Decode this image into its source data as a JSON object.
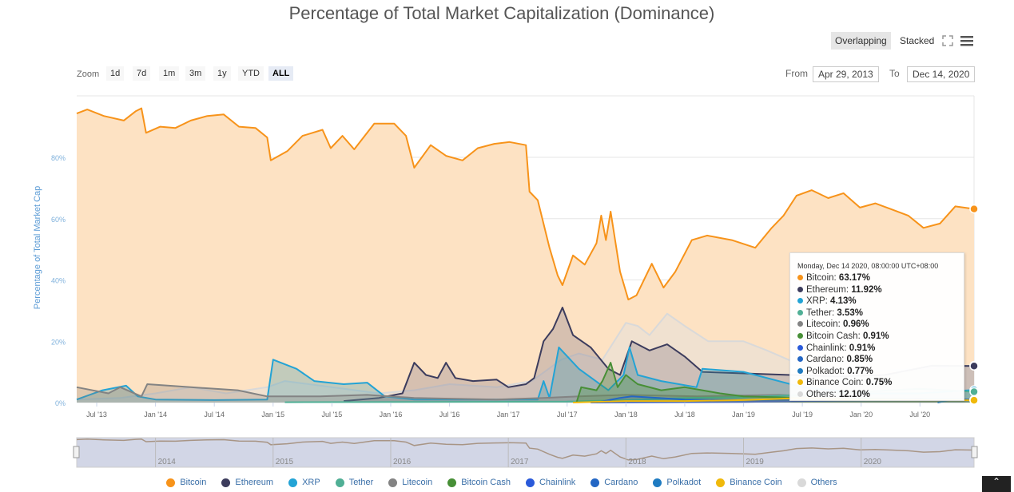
{
  "title": "Percentage of Total Market Capitalization (Dominance)",
  "toolbar": {
    "modes": [
      "Overlapping",
      "Stacked"
    ],
    "active_mode": "Overlapping",
    "fullscreen_icon": "expand-icon",
    "menu_icon": "hamburger-icon"
  },
  "zoom": {
    "label": "Zoom",
    "buttons": [
      "1d",
      "7d",
      "1m",
      "3m",
      "1y",
      "YTD",
      "ALL"
    ],
    "active": "ALL"
  },
  "range": {
    "from_label": "From",
    "from": "Apr 29, 2013",
    "to_label": "To",
    "to": "Dec 14, 2020"
  },
  "tooltip": {
    "header": "Monday, Dec 14 2020, 08:00:00 UTC+08:00",
    "rows": [
      {
        "name": "Bitcoin",
        "value": "63.17%"
      },
      {
        "name": "Ethereum",
        "value": "11.92%"
      },
      {
        "name": "XRP",
        "value": "4.13%"
      },
      {
        "name": "Tether",
        "value": "3.53%"
      },
      {
        "name": "Litecoin",
        "value": "0.96%"
      },
      {
        "name": "Bitcoin Cash",
        "value": "0.91%"
      },
      {
        "name": "Chainlink",
        "value": "0.91%"
      },
      {
        "name": "Cardano",
        "value": "0.85%"
      },
      {
        "name": "Polkadot",
        "value": "0.77%"
      },
      {
        "name": "Binance Coin",
        "value": "0.75%"
      },
      {
        "name": "Others",
        "value": "12.10%"
      }
    ]
  },
  "navigator": {
    "years": [
      "2014",
      "2015",
      "2016",
      "2017",
      "2018",
      "2019",
      "2020"
    ]
  },
  "chart_data": {
    "type": "area",
    "title": "Percentage of Total Market Capitalization (Dominance)",
    "ylabel": "Percentage of Total Market Cap",
    "xlabel": "",
    "ylim": [
      0,
      100
    ],
    "xlim": [
      2013.33,
      2020.96
    ],
    "yticks": [
      "0%",
      "20%",
      "40%",
      "60%",
      "80%"
    ],
    "ytick_values": [
      0,
      20,
      40,
      60,
      80
    ],
    "xticks": [
      "Jul '13",
      "Jan '14",
      "Jul '14",
      "Jan '15",
      "Jul '15",
      "Jan '16",
      "Jul '16",
      "Jan '17",
      "Jul '17",
      "Jan '18",
      "Jul '18",
      "Jan '19",
      "Jul '19",
      "Jan '20",
      "Jul '20"
    ],
    "xtick_values": [
      2013.5,
      2014,
      2014.5,
      2015,
      2015.5,
      2016,
      2016.5,
      2017,
      2017.5,
      2018,
      2018.5,
      2019,
      2019.5,
      2020,
      2020.5
    ],
    "grid": true,
    "legend": "bottom",
    "series": [
      {
        "name": "Bitcoin",
        "color": "#f7931a",
        "fill": "#fde2c3",
        "points": [
          [
            2013.33,
            94.3
          ],
          [
            2013.42,
            95.6
          ],
          [
            2013.56,
            93.5
          ],
          [
            2013.73,
            92
          ],
          [
            2013.83,
            95
          ],
          [
            2013.88,
            96
          ],
          [
            2013.92,
            88
          ],
          [
            2014.04,
            90
          ],
          [
            2014.17,
            89.6
          ],
          [
            2014.3,
            92
          ],
          [
            2014.44,
            93.5
          ],
          [
            2014.58,
            94
          ],
          [
            2014.71,
            90
          ],
          [
            2014.85,
            89.6
          ],
          [
            2014.95,
            86.5
          ],
          [
            2014.98,
            79
          ],
          [
            2015.12,
            82
          ],
          [
            2015.25,
            87
          ],
          [
            2015.42,
            89
          ],
          [
            2015.49,
            83
          ],
          [
            2015.59,
            87
          ],
          [
            2015.69,
            82.6
          ],
          [
            2015.86,
            91
          ],
          [
            2016.03,
            91
          ],
          [
            2016.13,
            87
          ],
          [
            2016.2,
            76.6
          ],
          [
            2016.34,
            84
          ],
          [
            2016.47,
            80.5
          ],
          [
            2016.61,
            79
          ],
          [
            2016.74,
            83
          ],
          [
            2016.88,
            84.4
          ],
          [
            2017.01,
            85
          ],
          [
            2017.15,
            84
          ],
          [
            2017.18,
            68.8
          ],
          [
            2017.25,
            66
          ],
          [
            2017.35,
            50.5
          ],
          [
            2017.42,
            41.4
          ],
          [
            2017.46,
            38.3
          ],
          [
            2017.55,
            48
          ],
          [
            2017.65,
            45
          ],
          [
            2017.75,
            52
          ],
          [
            2017.79,
            61
          ],
          [
            2017.83,
            53
          ],
          [
            2017.87,
            62.3
          ],
          [
            2017.95,
            42.7
          ],
          [
            2018.02,
            33.6
          ],
          [
            2018.09,
            35
          ],
          [
            2018.22,
            45.3
          ],
          [
            2018.32,
            37.5
          ],
          [
            2018.42,
            42.7
          ],
          [
            2018.56,
            53
          ],
          [
            2018.69,
            54.5
          ],
          [
            2018.9,
            53
          ],
          [
            2019.1,
            50.5
          ],
          [
            2019.24,
            57
          ],
          [
            2019.34,
            61
          ],
          [
            2019.45,
            67.5
          ],
          [
            2019.58,
            69.3
          ],
          [
            2019.72,
            66.7
          ],
          [
            2019.85,
            68.3
          ],
          [
            2019.99,
            63.6
          ],
          [
            2020.12,
            65
          ],
          [
            2020.26,
            63
          ],
          [
            2020.4,
            61
          ],
          [
            2020.53,
            57
          ],
          [
            2020.67,
            58.4
          ],
          [
            2020.8,
            64
          ],
          [
            2020.96,
            63.17
          ]
        ]
      },
      {
        "name": "Others",
        "color": "#d9d9d9",
        "fill": "rgba(225,225,225,0.45)",
        "points": [
          [
            2013.33,
            1
          ],
          [
            2013.7,
            1.5
          ],
          [
            2014,
            3
          ],
          [
            2014.3,
            5
          ],
          [
            2014.6,
            3
          ],
          [
            2014.95,
            5
          ],
          [
            2015.1,
            7
          ],
          [
            2015.5,
            5
          ],
          [
            2015.9,
            3
          ],
          [
            2016.2,
            4
          ],
          [
            2016.5,
            6
          ],
          [
            2016.9,
            5
          ],
          [
            2017.2,
            7
          ],
          [
            2017.45,
            14
          ],
          [
            2017.6,
            16
          ],
          [
            2017.8,
            14
          ],
          [
            2017.9,
            20
          ],
          [
            2018.0,
            26
          ],
          [
            2018.1,
            25
          ],
          [
            2018.2,
            22
          ],
          [
            2018.35,
            29
          ],
          [
            2018.5,
            25
          ],
          [
            2018.7,
            20
          ],
          [
            2019.0,
            20
          ],
          [
            2019.2,
            17
          ],
          [
            2019.5,
            12
          ],
          [
            2020.0,
            10
          ],
          [
            2020.5,
            11
          ],
          [
            2020.96,
            12.1
          ]
        ]
      },
      {
        "name": "Ethereum",
        "color": "#3c3c5d",
        "fill": "rgba(140,130,140,0.35)",
        "points": [
          [
            2015.6,
            0.5
          ],
          [
            2015.9,
            1.5
          ],
          [
            2016.1,
            3
          ],
          [
            2016.2,
            13
          ],
          [
            2016.3,
            9
          ],
          [
            2016.4,
            8
          ],
          [
            2016.47,
            13
          ],
          [
            2016.55,
            8
          ],
          [
            2016.7,
            7
          ],
          [
            2016.9,
            7.5
          ],
          [
            2017.0,
            5
          ],
          [
            2017.15,
            6
          ],
          [
            2017.22,
            8
          ],
          [
            2017.3,
            20
          ],
          [
            2017.38,
            24
          ],
          [
            2017.46,
            31
          ],
          [
            2017.55,
            22
          ],
          [
            2017.7,
            18
          ],
          [
            2017.85,
            11
          ],
          [
            2017.95,
            9
          ],
          [
            2018.05,
            20
          ],
          [
            2018.2,
            17
          ],
          [
            2018.35,
            19
          ],
          [
            2018.5,
            15
          ],
          [
            2018.65,
            10
          ],
          [
            2019.0,
            9.5
          ],
          [
            2019.4,
            9
          ],
          [
            2019.8,
            8.5
          ],
          [
            2020.2,
            9
          ],
          [
            2020.6,
            12
          ],
          [
            2020.96,
            11.92
          ]
        ]
      },
      {
        "name": "XRP",
        "color": "#23a3d5",
        "fill": "rgba(60,150,170,0.3)",
        "points": [
          [
            2013.33,
            1
          ],
          [
            2013.55,
            4
          ],
          [
            2013.75,
            5.5
          ],
          [
            2013.85,
            2
          ],
          [
            2014.0,
            1
          ],
          [
            2014.5,
            0.8
          ],
          [
            2014.95,
            1
          ],
          [
            2015.0,
            14
          ],
          [
            2015.2,
            11
          ],
          [
            2015.35,
            7
          ],
          [
            2015.6,
            6
          ],
          [
            2015.8,
            6.5
          ],
          [
            2015.95,
            2
          ],
          [
            2016.2,
            1
          ],
          [
            2016.9,
            1
          ],
          [
            2017.25,
            1
          ],
          [
            2017.3,
            7
          ],
          [
            2017.35,
            1.5
          ],
          [
            2017.43,
            18
          ],
          [
            2017.6,
            11
          ],
          [
            2017.85,
            4
          ],
          [
            2017.98,
            9
          ],
          [
            2018.03,
            18
          ],
          [
            2018.1,
            9
          ],
          [
            2018.3,
            7
          ],
          [
            2018.6,
            5
          ],
          [
            2018.65,
            11
          ],
          [
            2019.0,
            10
          ],
          [
            2019.5,
            5
          ],
          [
            2020.0,
            3
          ],
          [
            2020.5,
            3
          ],
          [
            2020.96,
            4.13
          ]
        ]
      },
      {
        "name": "Litecoin",
        "color": "#838383",
        "fill": "rgba(130,120,110,0.25)",
        "points": [
          [
            2013.33,
            5
          ],
          [
            2013.6,
            3
          ],
          [
            2013.7,
            5
          ],
          [
            2013.88,
            2
          ],
          [
            2013.93,
            6
          ],
          [
            2014.3,
            5
          ],
          [
            2014.7,
            4
          ],
          [
            2014.95,
            2
          ],
          [
            2015.4,
            2
          ],
          [
            2015.8,
            2.5
          ],
          [
            2016.2,
            1.5
          ],
          [
            2016.9,
            1
          ],
          [
            2017.3,
            1.5
          ],
          [
            2017.6,
            2
          ],
          [
            2018.0,
            2.5
          ],
          [
            2018.6,
            2
          ],
          [
            2019.3,
            2.5
          ],
          [
            2020.0,
            1.5
          ],
          [
            2020.96,
            0.96
          ]
        ]
      },
      {
        "name": "Tether",
        "color": "#50af95",
        "fill": "rgba(80,175,149,0.25)",
        "points": [
          [
            2015.1,
            0.1
          ],
          [
            2017.5,
            0.3
          ],
          [
            2018.0,
            0.8
          ],
          [
            2018.5,
            1.5
          ],
          [
            2019.0,
            1.8
          ],
          [
            2019.5,
            2.5
          ],
          [
            2020.0,
            3.5
          ],
          [
            2020.5,
            4.5
          ],
          [
            2020.96,
            3.53
          ]
        ]
      },
      {
        "name": "Bitcoin Cash",
        "color": "#478f36",
        "fill": "rgba(71,143,54,0.3)",
        "points": [
          [
            2017.58,
            0
          ],
          [
            2017.62,
            5
          ],
          [
            2017.75,
            4
          ],
          [
            2017.8,
            7
          ],
          [
            2017.87,
            13
          ],
          [
            2017.93,
            5
          ],
          [
            2018.0,
            9
          ],
          [
            2018.1,
            6
          ],
          [
            2018.3,
            4
          ],
          [
            2018.5,
            5
          ],
          [
            2018.8,
            3
          ],
          [
            2019.0,
            2
          ],
          [
            2019.5,
            1.5
          ],
          [
            2020.0,
            1.2
          ],
          [
            2020.96,
            0.91
          ]
        ]
      },
      {
        "name": "Chainlink",
        "color": "#2a5ada",
        "fill": "rgba(42,90,218,0.15)",
        "points": [
          [
            2017.7,
            0
          ],
          [
            2019.0,
            0.2
          ],
          [
            2019.5,
            0.5
          ],
          [
            2020.5,
            1
          ],
          [
            2020.96,
            0.91
          ]
        ]
      },
      {
        "name": "Cardano",
        "color": "#2366c4",
        "fill": "rgba(35,102,196,0.15)",
        "points": [
          [
            2017.75,
            0
          ],
          [
            2017.95,
            1.5
          ],
          [
            2018.05,
            2
          ],
          [
            2018.5,
            1
          ],
          [
            2019.0,
            0.8
          ],
          [
            2020.0,
            0.7
          ],
          [
            2020.96,
            0.85
          ]
        ]
      },
      {
        "name": "Polkadot",
        "color": "#1f7bc1",
        "fill": "rgba(31,123,193,0.15)",
        "points": [
          [
            2020.65,
            0
          ],
          [
            2020.75,
            0.8
          ],
          [
            2020.96,
            0.77
          ]
        ]
      },
      {
        "name": "Binance Coin",
        "color": "#f0b90b",
        "fill": "rgba(240,185,11,0.2)",
        "points": [
          [
            2017.55,
            0
          ],
          [
            2018.0,
            0.5
          ],
          [
            2018.5,
            0.5
          ],
          [
            2019.0,
            0.8
          ],
          [
            2019.5,
            1.5
          ],
          [
            2020.0,
            0.8
          ],
          [
            2020.96,
            0.75
          ]
        ]
      }
    ]
  }
}
